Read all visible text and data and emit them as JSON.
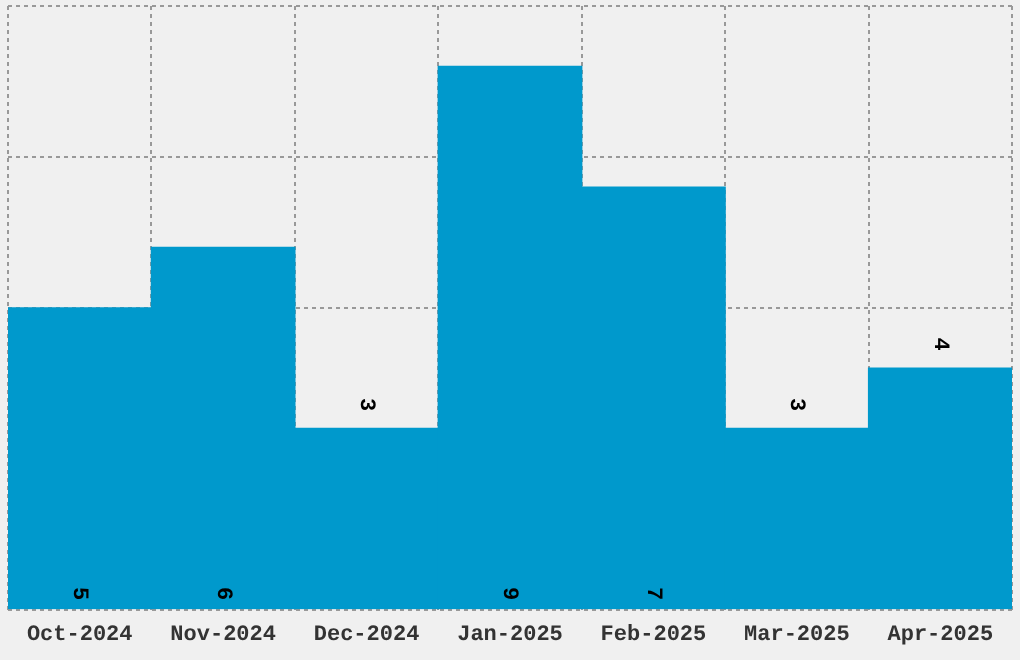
{
  "chart_data": {
    "type": "bar",
    "categories": [
      "Oct-2024",
      "Nov-2024",
      "Dec-2024",
      "Jan-2025",
      "Feb-2025",
      "Mar-2025",
      "Apr-2025"
    ],
    "values": [
      5,
      6,
      3,
      9,
      7,
      3,
      4
    ],
    "color": "#0099cc",
    "ylim": [
      0,
      10
    ],
    "grid": true,
    "tick_labels": "x",
    "data_labels": true
  }
}
